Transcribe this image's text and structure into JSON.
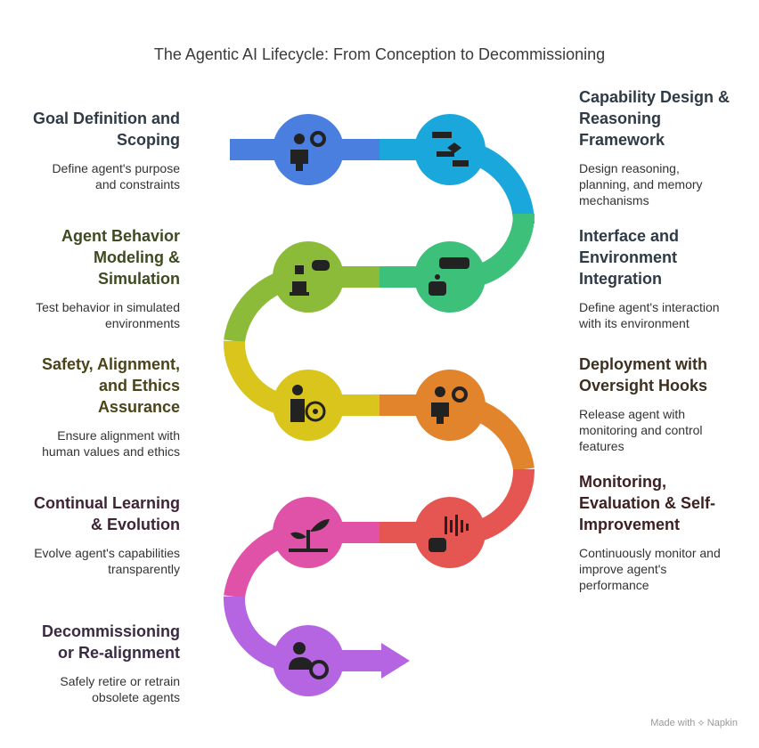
{
  "title": "The Agentic AI Lifecycle: From Conception to Decommissioning",
  "stages": [
    {
      "name": "Goal Definition and\nScoping",
      "desc": "Define agent's purpose\nand constraints",
      "color": "#4a7fe0",
      "icon": "person-gear-icon"
    },
    {
      "name": "Capability Design &\nReasoning\nFramework",
      "desc": "Design reasoning,\nplanning, and memory\nmechanisms",
      "color": "#1aa8dc",
      "icon": "flowchart-icon"
    },
    {
      "name": "Interface and\nEnvironment\nIntegration",
      "desc": "Define agent's interaction\nwith its environment",
      "color": "#3cc07a",
      "icon": "robot-gamepad-icon"
    },
    {
      "name": "Agent Behavior\nModeling &\nSimulation",
      "desc": "Test behavior in simulated\nenvironments",
      "color": "#8cbb3a",
      "icon": "vr-laptop-icon"
    },
    {
      "name": "Safety, Alignment,\nand Ethics\nAssurance",
      "desc": "Ensure alignment with\nhuman values and ethics",
      "color": "#d9c51c",
      "icon": "person-target-icon"
    },
    {
      "name": "Deployment with\nOversight Hooks",
      "desc": "Release agent with\nmonitoring and control\nfeatures",
      "color": "#e1842c",
      "icon": "person-gear-icon"
    },
    {
      "name": "Monitoring,\nEvaluation & Self-\nImprovement",
      "desc": "Continuously monitor and\nimprove agent's\nperformance",
      "color": "#e55652",
      "icon": "robot-soundwave-icon"
    },
    {
      "name": "Continual Learning\n& Evolution",
      "desc": "Evolve agent's capabilities\ntransparently",
      "color": "#e052a8",
      "icon": "growth-plant-icon"
    },
    {
      "name": "Decommissioning\nor Re-alignment",
      "desc": "Safely retire or retrain\nobsolete agents",
      "color": "#b565e2",
      "icon": "person-refresh-icon"
    }
  ],
  "footer": "Made with ⟡ Napkin",
  "head_colors": [
    "#2f3a47",
    "#2f3a47",
    "#2f3a47",
    "#3e4a1f",
    "#4a4418",
    "#3e3020",
    "#3e2020",
    "#3f2436",
    "#3a2a44"
  ]
}
